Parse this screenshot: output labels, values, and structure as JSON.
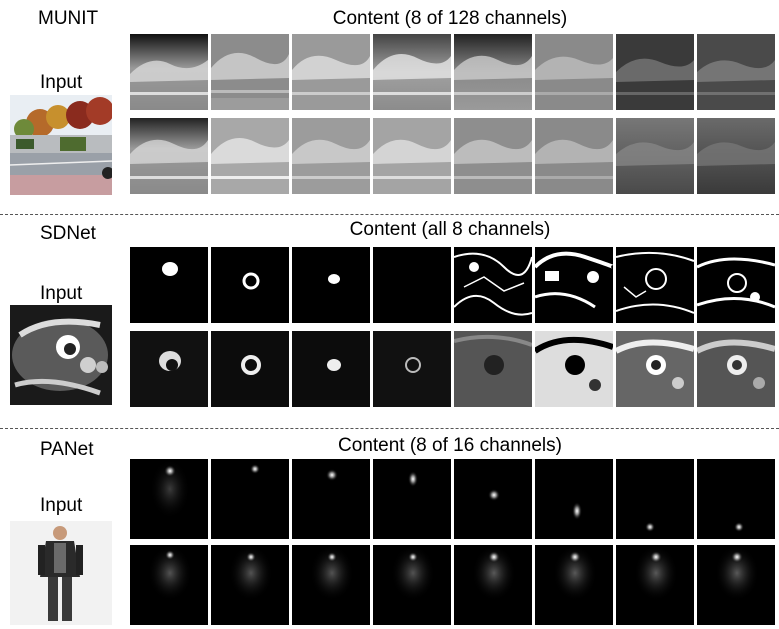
{
  "sections": [
    {
      "id": "munit",
      "method": "MUNIT",
      "input_label": "Input",
      "caption": "Content (8 of 128 channels)",
      "rows": 2,
      "cols": 8
    },
    {
      "id": "sdnet",
      "method": "SDNet",
      "input_label": "Input",
      "caption": "Content (all 8 channels)",
      "rows": 2,
      "cols": 8
    },
    {
      "id": "panet",
      "method": "PANet",
      "input_label": "Input",
      "caption": "Content (8 of 16 channels)",
      "rows": 2,
      "cols": 8
    }
  ]
}
